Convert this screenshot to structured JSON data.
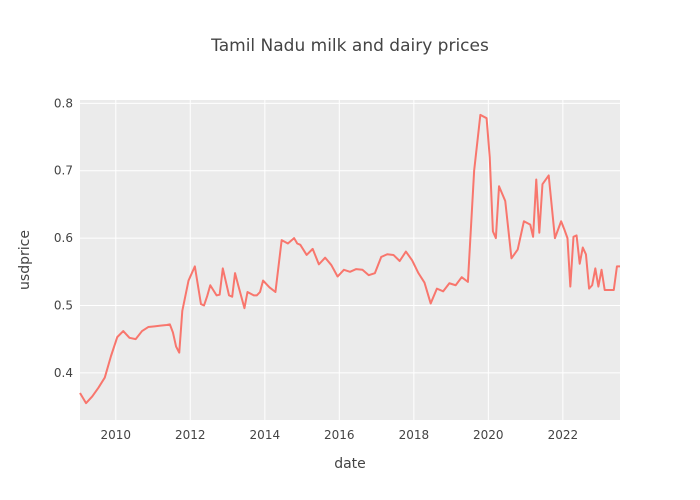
{
  "chart_data": {
    "type": "line",
    "title": "Tamil Nadu milk and dairy prices",
    "xlabel": "date",
    "ylabel": "usdprice",
    "xlim": [
      "2009-01-15",
      "2023-07-15"
    ],
    "ylim": [
      0.33,
      0.805
    ],
    "x_ticks": [
      "2010",
      "2012",
      "2014",
      "2016",
      "2018",
      "2020",
      "2022"
    ],
    "y_ticks": [
      "0.4",
      "0.5",
      "0.6",
      "0.7",
      "0.8"
    ],
    "grid": true,
    "legend": "none",
    "colors": {
      "line": "#f8766d",
      "plot_bg": "#ebebeb",
      "grid": "#ffffff",
      "text": "#444444"
    },
    "series": [
      {
        "x": [
          "2009-01-15",
          "2009-03-15",
          "2009-05-15",
          "2009-07-15",
          "2009-09-15",
          "2009-11-15",
          "2010-01-15",
          "2010-03-15",
          "2010-05-15",
          "2010-07-15",
          "2010-09-15",
          "2010-11-15",
          "2011-01-15",
          "2011-03-15",
          "2011-05-15",
          "2011-06-15",
          "2011-07-15",
          "2011-08-15",
          "2011-09-15",
          "2011-10-15",
          "2011-12-15",
          "2012-02-15",
          "2012-04-15",
          "2012-05-15",
          "2012-06-15",
          "2012-07-15",
          "2012-09-15",
          "2012-10-15",
          "2012-11-15",
          "2013-01-15",
          "2013-02-15",
          "2013-03-15",
          "2013-04-15",
          "2013-06-15",
          "2013-07-15",
          "2013-09-15",
          "2013-10-15",
          "2013-11-15",
          "2013-12-15",
          "2014-02-15",
          "2014-04-15",
          "2014-06-15",
          "2014-08-15",
          "2014-10-15",
          "2014-11-15",
          "2014-12-15",
          "2015-02-15",
          "2015-04-15",
          "2015-06-15",
          "2015-08-15",
          "2015-10-15",
          "2015-12-15",
          "2016-02-15",
          "2016-04-15",
          "2016-06-15",
          "2016-08-15",
          "2016-10-15",
          "2016-12-15",
          "2017-02-15",
          "2017-04-15",
          "2017-06-15",
          "2017-08-15",
          "2017-10-15",
          "2017-12-15",
          "2018-02-15",
          "2018-04-15",
          "2018-06-15",
          "2018-08-15",
          "2018-10-15",
          "2018-12-15",
          "2019-02-15",
          "2019-04-15",
          "2019-06-15",
          "2019-08-15",
          "2019-10-15",
          "2019-12-15",
          "2020-01-15",
          "2020-02-15",
          "2020-03-15",
          "2020-04-15",
          "2020-06-15",
          "2020-08-15",
          "2020-10-15",
          "2020-12-15",
          "2021-02-15",
          "2021-03-15",
          "2021-04-15",
          "2021-05-15",
          "2021-06-15",
          "2021-08-15",
          "2021-10-15",
          "2021-12-15",
          "2022-01-15",
          "2022-02-15",
          "2022-03-15",
          "2022-04-15",
          "2022-05-15",
          "2022-06-15",
          "2022-07-15",
          "2022-08-15",
          "2022-09-15",
          "2022-10-15",
          "2022-11-15",
          "2022-12-15",
          "2023-01-15",
          "2023-02-15",
          "2023-03-15",
          "2023-04-15",
          "2023-05-15",
          "2023-06-15",
          "2023-07-15"
        ],
        "y": [
          0.37,
          0.355,
          0.365,
          0.378,
          0.393,
          0.425,
          0.453,
          0.462,
          0.452,
          0.45,
          0.462,
          0.468,
          0.469,
          0.47,
          0.471,
          0.472,
          0.46,
          0.439,
          0.43,
          0.492,
          0.537,
          0.558,
          0.502,
          0.5,
          0.514,
          0.53,
          0.515,
          0.516,
          0.555,
          0.515,
          0.513,
          0.548,
          0.53,
          0.496,
          0.52,
          0.515,
          0.515,
          0.52,
          0.537,
          0.527,
          0.52,
          0.597,
          0.592,
          0.6,
          0.592,
          0.59,
          0.575,
          0.584,
          0.561,
          0.571,
          0.56,
          0.543,
          0.553,
          0.55,
          0.554,
          0.553,
          0.545,
          0.548,
          0.572,
          0.576,
          0.575,
          0.566,
          0.58,
          0.567,
          0.548,
          0.534,
          0.503,
          0.525,
          0.521,
          0.533,
          0.53,
          0.542,
          0.535,
          0.7,
          0.783,
          0.778,
          0.72,
          0.61,
          0.6,
          0.677,
          0.655,
          0.57,
          0.583,
          0.625,
          0.62,
          0.602,
          0.687,
          0.608,
          0.68,
          0.693,
          0.6,
          0.625,
          0.613,
          0.6,
          0.528,
          0.602,
          0.604,
          0.562,
          0.586,
          0.576,
          0.525,
          0.53,
          0.555,
          0.528,
          0.553,
          0.523,
          0.523,
          0.523,
          0.523,
          0.558,
          0.558
        ]
      }
    ]
  }
}
